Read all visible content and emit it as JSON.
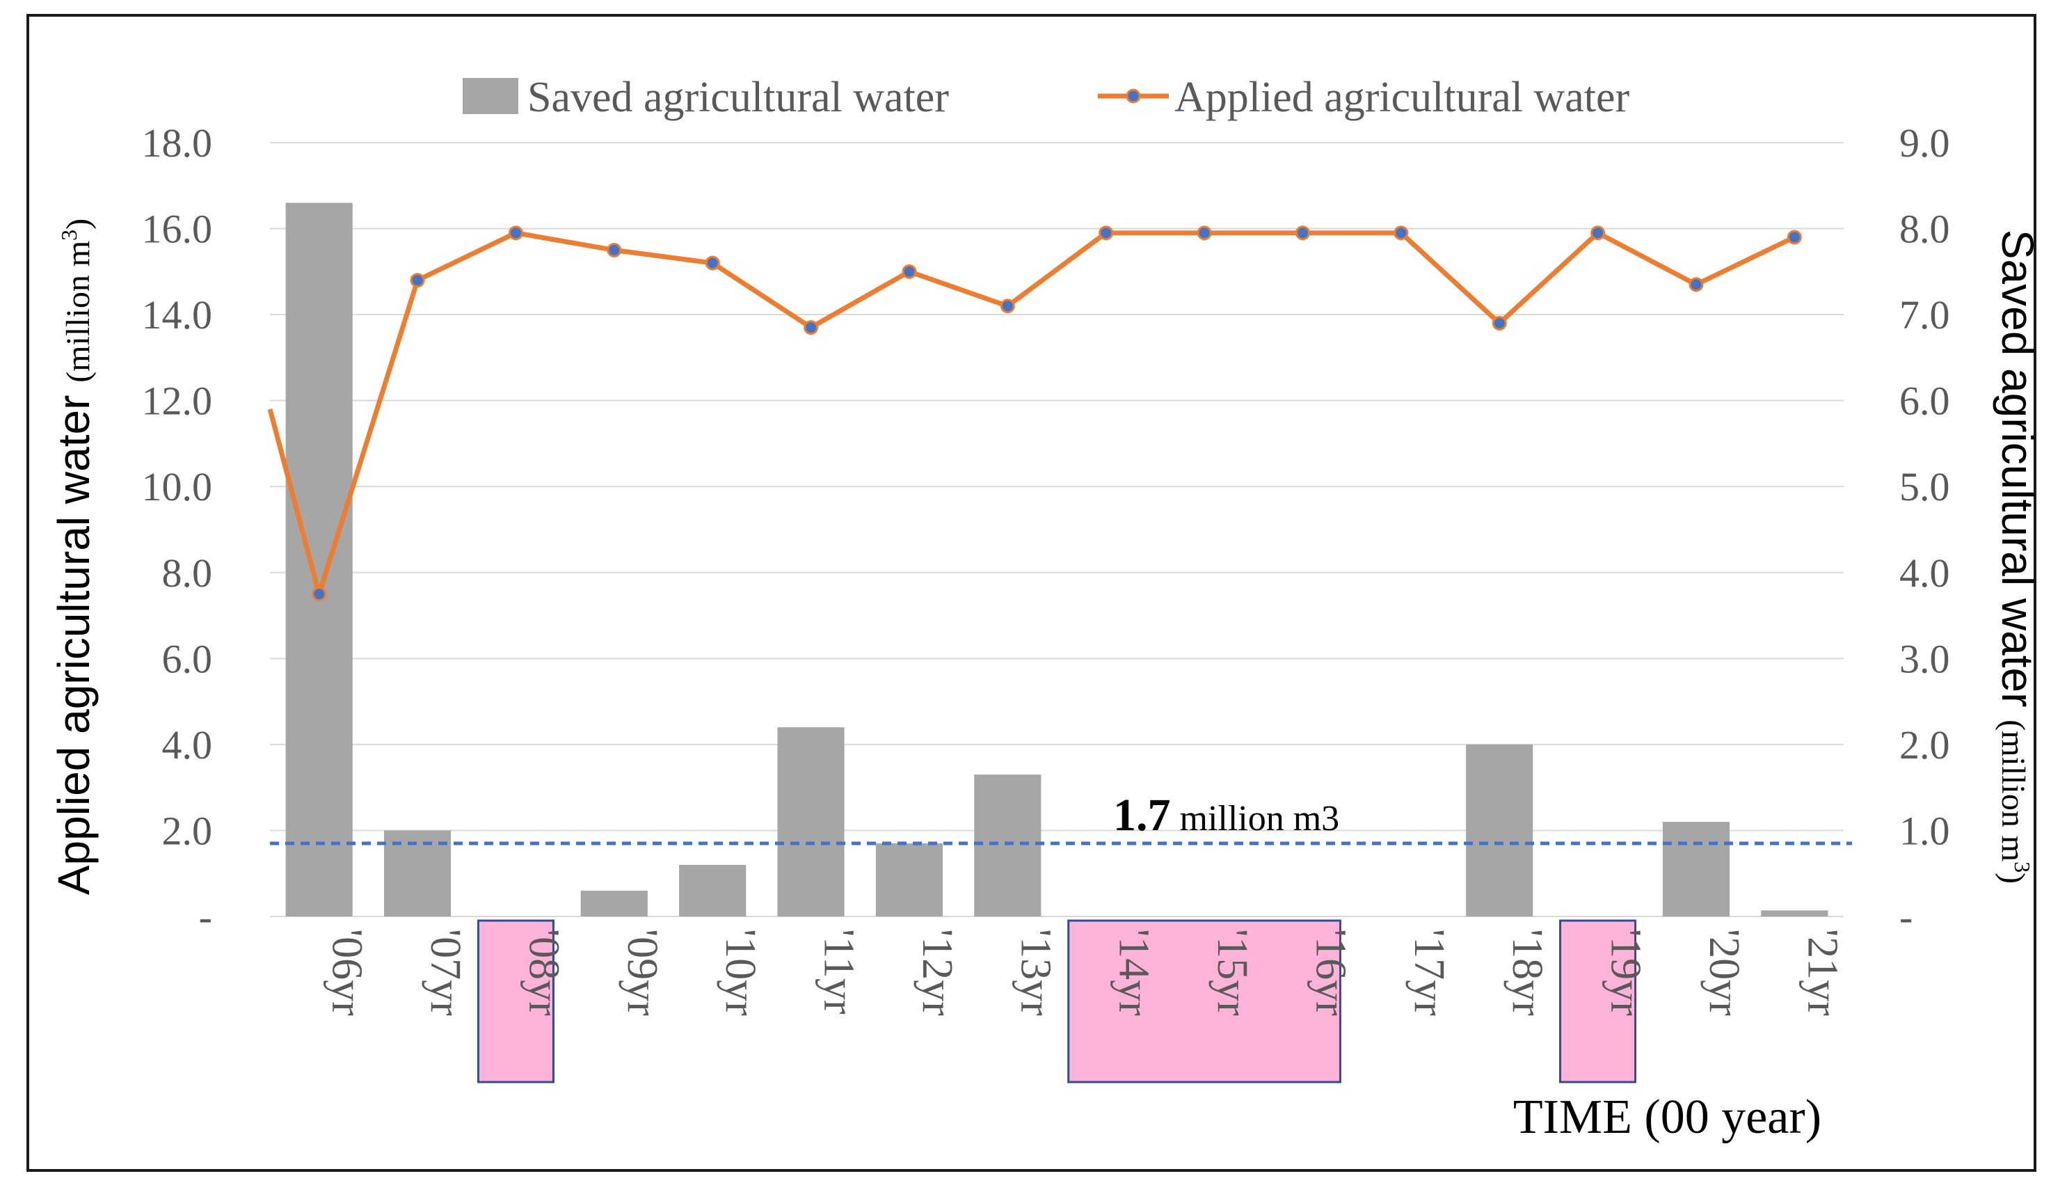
{
  "chart_data": {
    "type": "bar",
    "categories": [
      "'06yr",
      "'07yr",
      "'08yr",
      "'09yr",
      "'10yr",
      "'11yr",
      "'12yr",
      "'13yr",
      "'14yr",
      "'15yr",
      "'16yr",
      "'17yr",
      "'18yr",
      "'19yr",
      "'20yr",
      "'21yr"
    ],
    "highlighted_categories": [
      [
        "'08yr"
      ],
      [
        "'14yr",
        "'15yr",
        "'16yr"
      ],
      [
        "'19yr"
      ]
    ],
    "series": [
      {
        "name": "Saved agricultural water",
        "type": "bar",
        "axis": "right",
        "values": [
          8.3,
          1.0,
          0.0,
          0.3,
          0.6,
          2.2,
          0.85,
          1.65,
          0.0,
          0.0,
          0.0,
          0.0,
          2.0,
          0.0,
          1.1,
          0.07
        ],
        "color": "#a6a6a6"
      },
      {
        "name": "Applied agricultural water",
        "type": "line",
        "axis": "left",
        "values": [
          7.5,
          14.8,
          15.9,
          15.5,
          15.2,
          13.7,
          15.0,
          14.2,
          15.9,
          15.9,
          15.9,
          15.9,
          13.8,
          15.9,
          14.7,
          15.8
        ],
        "line_start_value": 11.8,
        "color": "#ed7d31",
        "marker_color": "#4472c4"
      }
    ],
    "left_axis": {
      "label_main": "Applied agricultural water",
      "label_unit": "(million  m",
      "label_sup": "3",
      "label_close": ")",
      "range": [
        0,
        18
      ],
      "ticks": [
        "-",
        "2.0",
        "4.0",
        "6.0",
        "8.0",
        "10.0",
        "12.0",
        "14.0",
        "16.0",
        "18.0"
      ]
    },
    "right_axis": {
      "label_main": "Saved agricultural water",
      "label_unit": "(million  m",
      "label_sup": "3",
      "label_close": ")",
      "range": [
        0,
        9
      ],
      "ticks": [
        "-",
        "1.0",
        "2.0",
        "3.0",
        "4.0",
        "5.0",
        "6.0",
        "7.0",
        "8.0",
        "9.0"
      ]
    },
    "reference_line": {
      "value": 1.7,
      "axis": "left",
      "label_value": "1.7",
      "label_unit": " million  m3",
      "color": "#4472c4"
    },
    "xlabel": "TIME (00 year)",
    "legend_position": "top",
    "grid": true,
    "colors": {
      "grid": "#d9d9d9",
      "highlight_fill": "#ffb3d9",
      "highlight_border": "#2f4d8f"
    }
  }
}
